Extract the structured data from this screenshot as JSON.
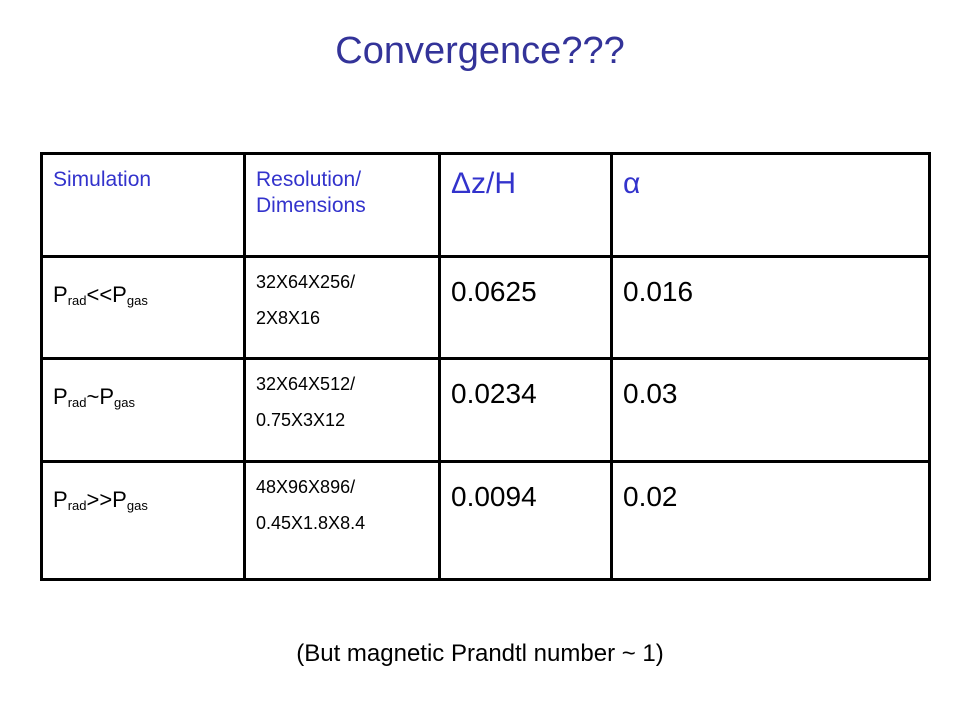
{
  "header": {
    "title": "Convergence???"
  },
  "table": {
    "columns": [
      "Simulation",
      "Resolution/ Dimensions",
      "Δz/H",
      "α"
    ],
    "rows": [
      [
        [
          "P",
          "rad",
          "<<P",
          "gas"
        ],
        [
          "32X64X256/",
          "2X8X16"
        ],
        "0.0625",
        "0.016"
      ],
      [
        [
          "P",
          "rad",
          "~P",
          "gas"
        ],
        [
          "32X64X512/",
          "0.75X3X12"
        ],
        "0.0234",
        "0.03"
      ],
      [
        [
          "P",
          "rad",
          ">>P",
          "gas"
        ],
        [
          "48X96X896/",
          "0.45X1.8X8.4"
        ],
        "0.0094",
        "0.02"
      ]
    ]
  },
  "footnote": "(But magnetic Prandtl number ~ 1)"
}
